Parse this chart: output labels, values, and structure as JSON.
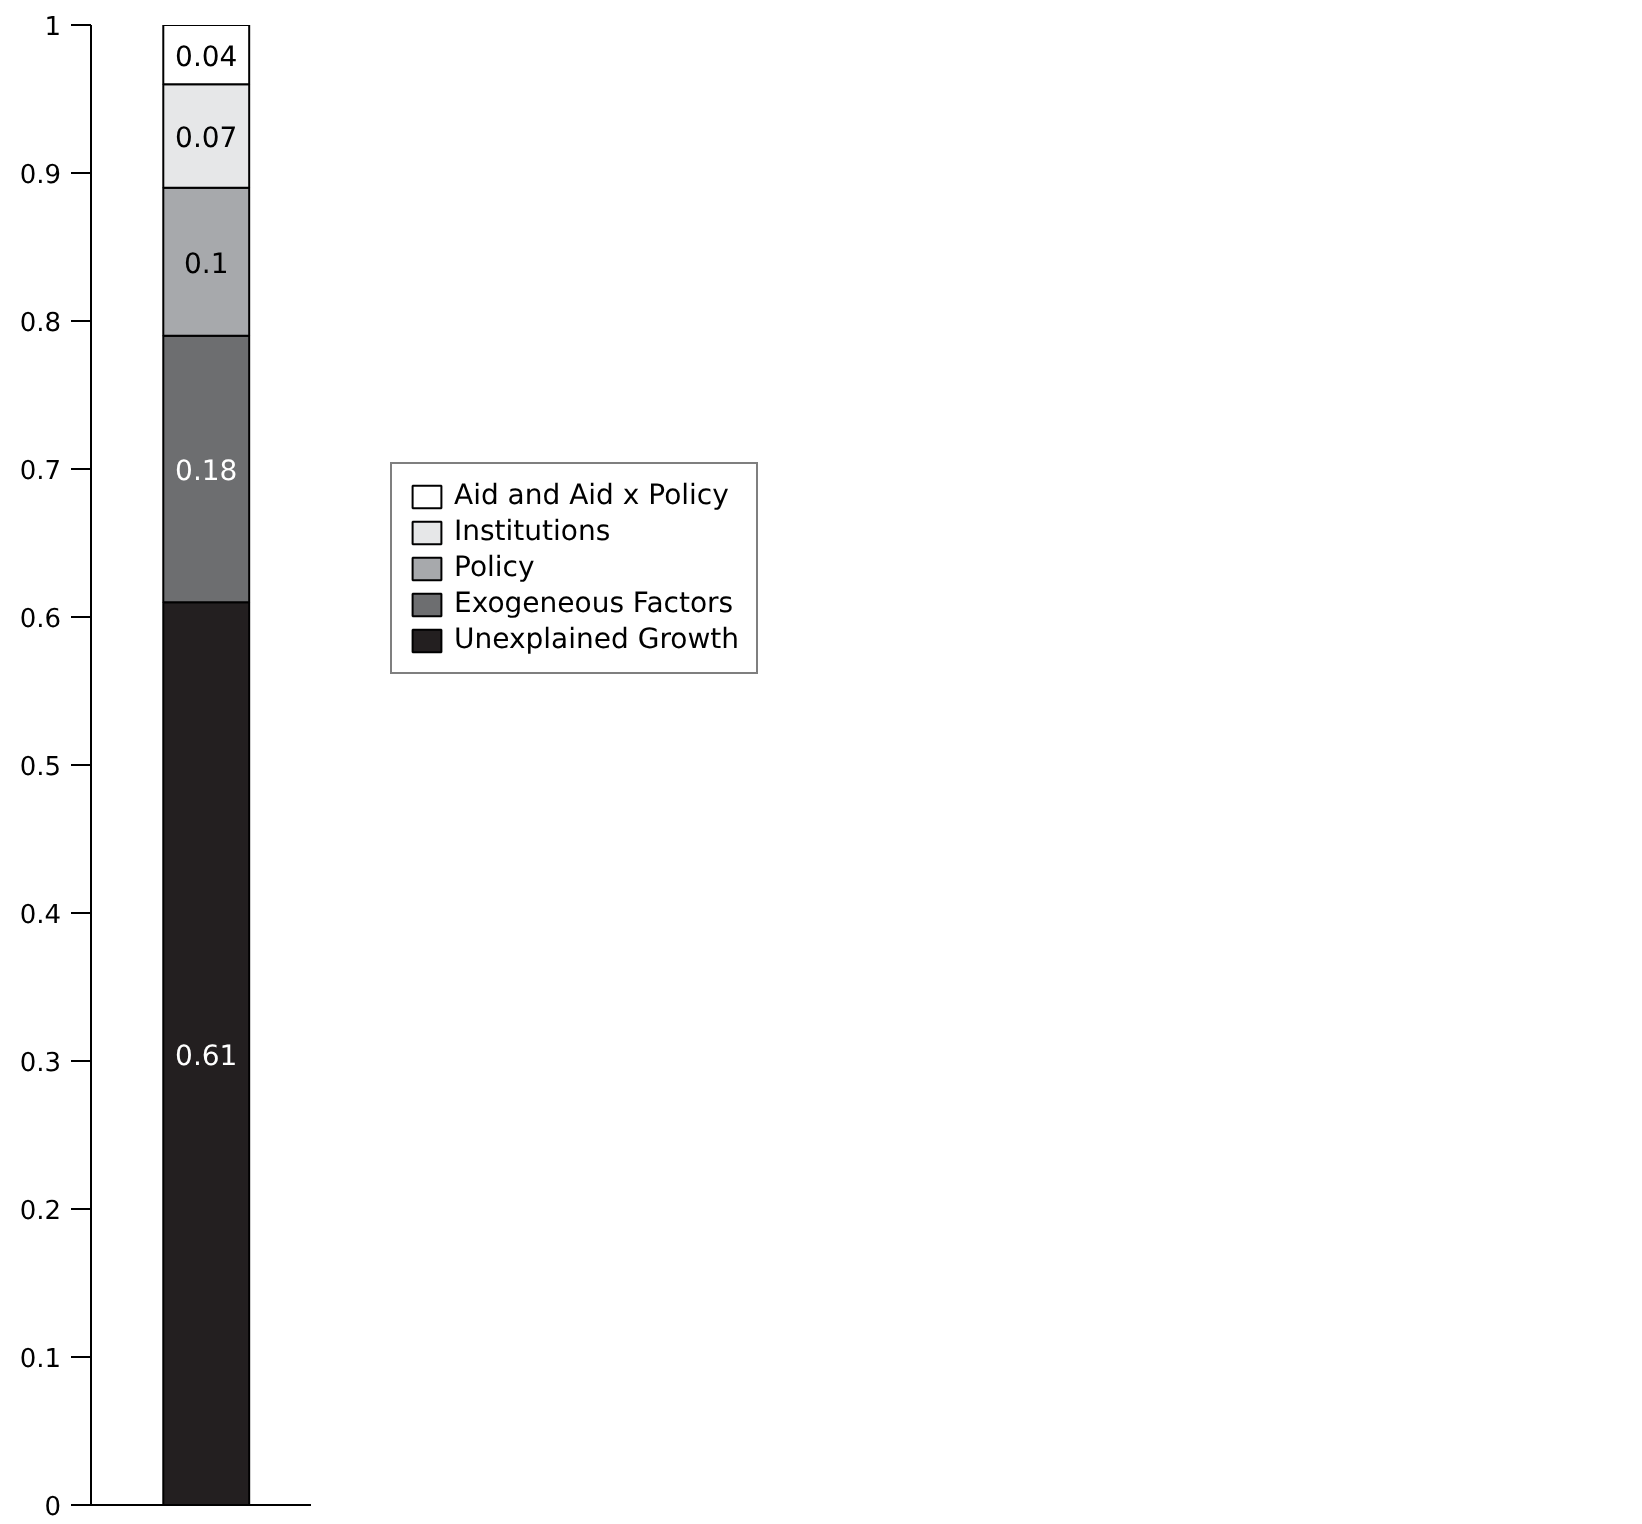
{
  "chart_data": {
    "type": "bar",
    "stacked": true,
    "categories": [
      null
    ],
    "series": [
      {
        "name": "Unexplained Growth",
        "color": "#231f20",
        "values": [
          0.61
        ]
      },
      {
        "name": "Exogeneous Factors",
        "color": "#6d6e70",
        "values": [
          0.18
        ]
      },
      {
        "name": "Policy",
        "color": "#a7a9ac",
        "values": [
          0.1
        ]
      },
      {
        "name": "Institutions",
        "color": "#e6e7e8",
        "values": [
          0.07
        ]
      },
      {
        "name": "Aid and Aid x Policy",
        "color": "#ffffff",
        "values": [
          0.04
        ]
      }
    ],
    "ylim": [
      0,
      1
    ],
    "yticks": [
      0,
      0.1,
      0.2,
      0.3,
      0.4,
      0.5,
      0.6,
      0.7,
      0.8,
      0.9,
      1
    ],
    "data_labels": true,
    "legend": "right",
    "grid": false,
    "tick_labels": "y"
  }
}
